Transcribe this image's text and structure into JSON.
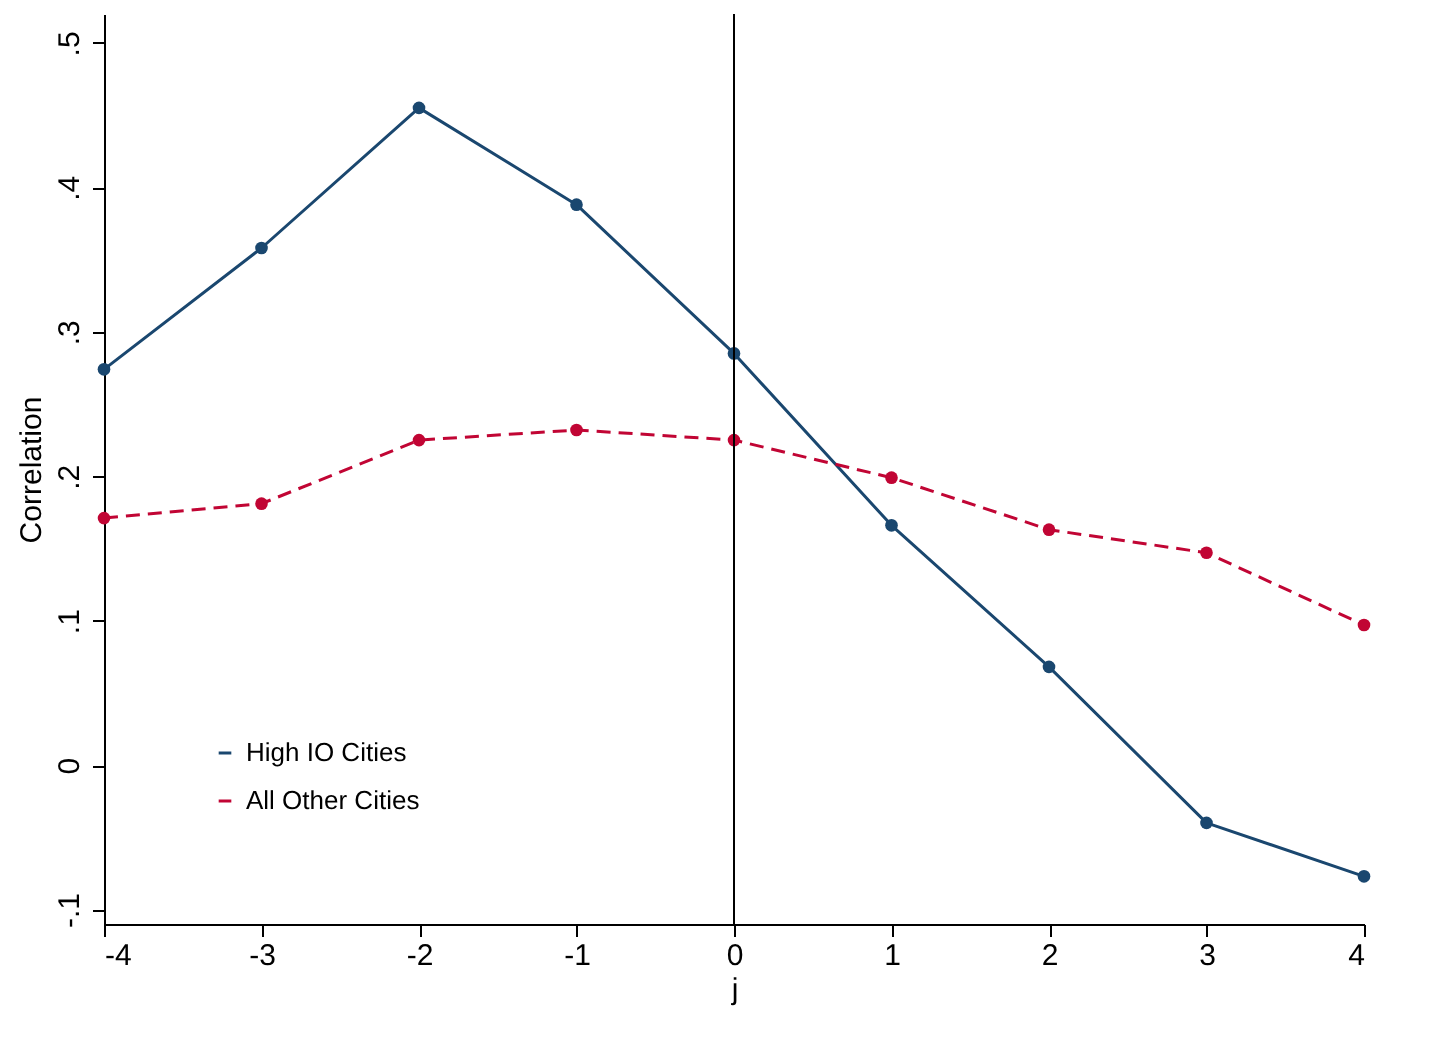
{
  "chart_data": {
    "type": "line",
    "xlabel": "j",
    "ylabel": "Correlation",
    "x": [
      -4,
      -3,
      -2,
      -1,
      0,
      1,
      2,
      3,
      4
    ],
    "series": [
      {
        "name": "High IO Cities",
        "color": "#1a476f",
        "line_style": "solid",
        "values": [
          0.274,
          0.358,
          0.455,
          0.388,
          0.285,
          0.166,
          0.068,
          -0.04,
          -0.077
        ]
      },
      {
        "name": "All Other Cities",
        "color": "#c10534",
        "line_style": "dashed",
        "values": [
          0.171,
          0.181,
          0.225,
          0.232,
          0.225,
          0.199,
          0.163,
          0.147,
          0.097
        ]
      }
    ],
    "xlim": [
      -4,
      4
    ],
    "xticks": [
      -4,
      -3,
      -2,
      -1,
      0,
      1,
      2,
      3,
      4
    ],
    "ylim": [
      -0.11,
      0.52
    ],
    "yticks": [
      {
        "value": -0.1,
        "label": "-.1"
      },
      0,
      {
        "value": 0.1,
        "label": ".1"
      },
      {
        "value": 0.2,
        "label": ".2"
      },
      {
        "value": 0.3,
        "label": ".3"
      },
      {
        "value": 0.4,
        "label": ".4"
      },
      {
        "value": 0.5,
        "label": ".5"
      }
    ],
    "ref_lines": [
      {
        "axis": "x",
        "value": 0,
        "color": "#000000"
      }
    ],
    "grid": false,
    "legend": "bottom left",
    "marker": "circle"
  }
}
